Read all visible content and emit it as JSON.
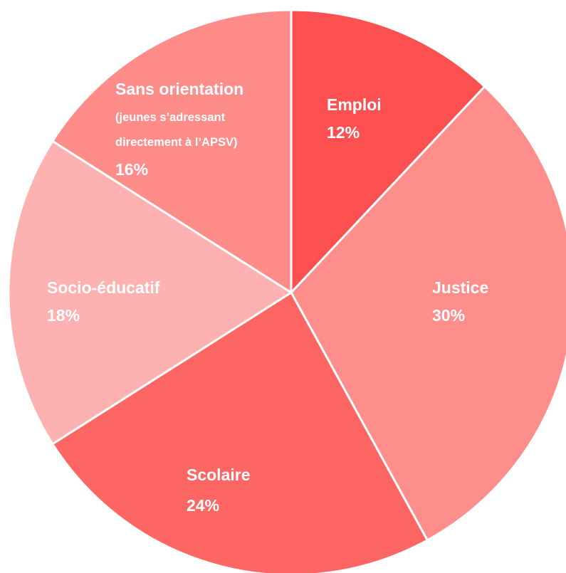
{
  "chart_data": {
    "type": "pie",
    "slices": [
      {
        "label": "Emploi",
        "note": "",
        "value": 12,
        "value_label": "12%",
        "color": "#fd5151"
      },
      {
        "label": "Justice",
        "note": "",
        "value": 30,
        "value_label": "30%",
        "color": "#fe8e8b"
      },
      {
        "label": "Scolaire",
        "note": "",
        "value": 24,
        "value_label": "24%",
        "color": "#fe6663"
      },
      {
        "label": "Socio-éducatif",
        "note": "",
        "value": 18,
        "value_label": "18%",
        "color": "#feb1b1"
      },
      {
        "label": "Sans orientation",
        "note": "(jeunes s’adressant directement à l’APSV)",
        "note_lines": [
          "(jeunes s’adressant",
          "directement à l’APSV)"
        ],
        "value": 16,
        "value_label": "16%",
        "color": "#fe8d8a"
      }
    ],
    "start": "12 o'clock",
    "direction": "clockwise",
    "legend": "none",
    "label_color": "#ffffff"
  }
}
